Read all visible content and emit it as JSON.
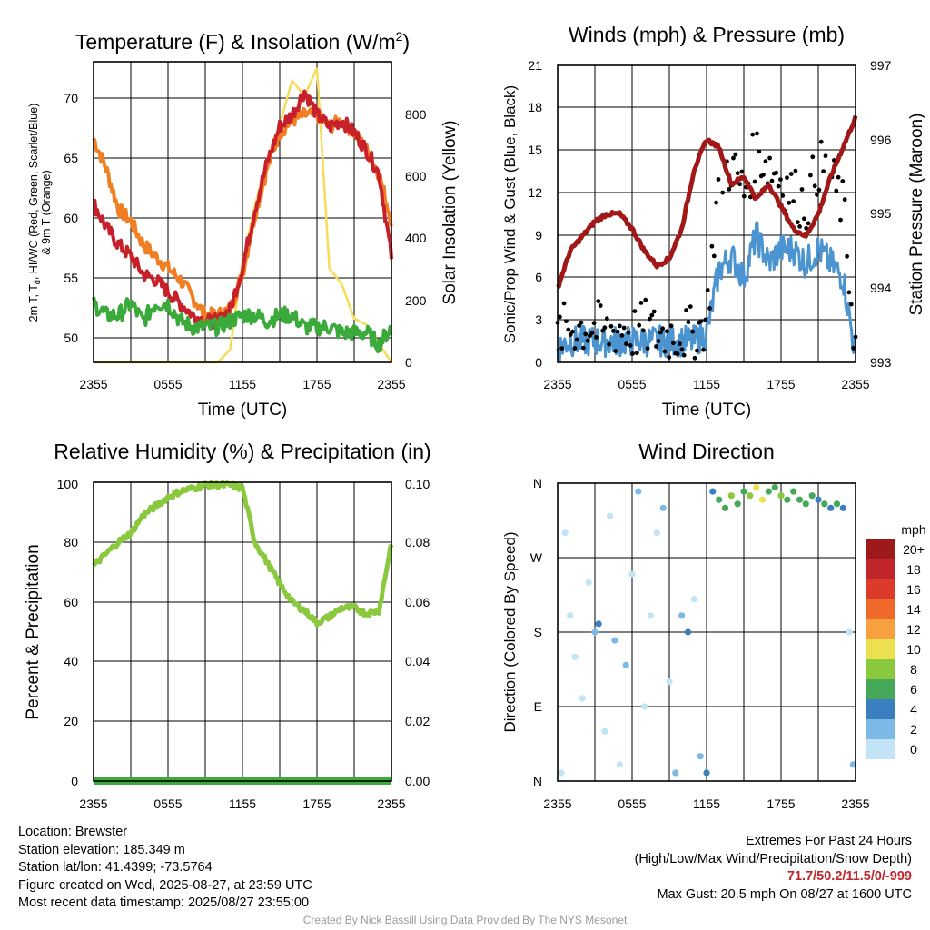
{
  "colors": {
    "temp": "#c8202a",
    "dewpoint_or_feels": "#3aab3a",
    "temp9m": "#f07f24",
    "solar": "#f7dc5a",
    "sonic_wind": "#4b94cf",
    "gust": "#000000",
    "pressure": "#a01818",
    "humidity": "#8ac83e",
    "precip": "#3aab3a"
  },
  "x_ticks": [
    "2355",
    "0555",
    "1155",
    "1755",
    "2355"
  ],
  "panels": {
    "temperature": {
      "title_main": "Temperature (F) & Insolation (W/m",
      "title_sup": "2",
      "title_end": ")",
      "ylabel_line1": "2m T, T",
      "ylabel_sub": "d",
      "ylabel_line1_end": ", HI/WC (Red, Green, Scarlet/Blue)",
      "ylabel_line2": "& 9m T (Orange)",
      "ylabel_right": "Solar Insolation (Yellow)",
      "xlabel": "Time (UTC)",
      "left_ticks": [
        "50",
        "55",
        "60",
        "65",
        "70"
      ],
      "right_ticks": [
        "0",
        "200",
        "400",
        "600",
        "800"
      ]
    },
    "winds": {
      "title": "Winds (mph) & Pressure (mb)",
      "ylabel_left": "Sonic/Prop Wind & Gust (Blue, Black)",
      "ylabel_right": "Station Pressure (Maroon)",
      "xlabel": "Time (UTC)",
      "left_ticks": [
        "0",
        "3",
        "6",
        "9",
        "12",
        "15",
        "18",
        "21"
      ],
      "right_ticks": [
        "993",
        "994",
        "995",
        "996",
        "997"
      ]
    },
    "humidity": {
      "title": "Relative Humidity (%) & Precipitation (in)",
      "ylabel": "Percent & Precipitation",
      "left_ticks": [
        "0",
        "20",
        "40",
        "60",
        "80",
        "100"
      ],
      "right_ticks": [
        "0.00",
        "0.02",
        "0.04",
        "0.06",
        "0.08",
        "0.10"
      ]
    },
    "direction": {
      "title": "Wind Direction",
      "ylabel": "Direction (Colored By Speed)",
      "dir_ticks": [
        "N",
        "E",
        "S",
        "W",
        "N"
      ],
      "legend_title": "mph",
      "legend_labels": [
        "20+",
        "18",
        "16",
        "14",
        "12",
        "10",
        "8",
        "6",
        "4",
        "2",
        "0"
      ],
      "legend_colors": [
        "#9e1a1a",
        "#c0252b",
        "#dc3a2a",
        "#ef6a2a",
        "#f7a040",
        "#ece050",
        "#8ac83e",
        "#45a858",
        "#3a7fc0",
        "#7db9e6",
        "#c3e4f6"
      ]
    }
  },
  "info": {
    "location": "Location: Brewster",
    "elevation": "Station elevation: 185.349 m",
    "latlon": "Station lat/lon: 41.4399; -73.5764",
    "created": "Figure created on Wed, 2025-08-27, at 23:59 UTC",
    "recent": "Most recent data timestamp: 2025/08/27 23:55:00"
  },
  "extremes": {
    "title": "Extremes For Past 24 Hours",
    "subtitle": "(High/Low/Max Wind/Precipitation/Snow Depth)",
    "values": "71.7/50.2/11.5/0/-999",
    "gust": "Max Gust: 20.5 mph On 08/27 at 1600 UTC"
  },
  "credit": "Created By Nick Bassill Using Data Provided By The NYS Mesonet",
  "chart_data": [
    {
      "type": "line",
      "title": "Temperature (F) & Insolation (W/m2)",
      "xlabel": "Time (UTC)",
      "ylabel": "2m T, Td, HI/WC (Red, Green, Scarlet/Blue) & 9m T (Orange)",
      "ylabel_right": "Solar Insolation (Yellow)",
      "ylim": [
        48,
        73.5
      ],
      "ylim_right": [
        0,
        960
      ],
      "x_hours": [
        0,
        1,
        2,
        3,
        4,
        5,
        6,
        7,
        8,
        9,
        10,
        11,
        12,
        13,
        14,
        15,
        16,
        17,
        18,
        19,
        20,
        21,
        22,
        23,
        24
      ],
      "series": [
        {
          "name": "2m T",
          "axis": "left",
          "values": [
            61.5,
            59.5,
            58,
            57,
            55.5,
            55,
            54,
            53,
            52,
            51.5,
            51.5,
            52.5,
            56,
            61,
            65,
            68,
            69,
            71,
            69,
            68,
            68.5,
            67.5,
            66,
            64,
            57
          ]
        },
        {
          "name": "9m T",
          "axis": "left",
          "values": [
            67,
            64.5,
            61,
            60,
            58,
            57,
            56,
            55,
            53.5,
            52,
            52,
            52.5,
            55.5,
            60.5,
            64.5,
            67.5,
            68.5,
            69,
            69,
            68,
            68.5,
            67.5,
            66,
            64,
            60
          ]
        },
        {
          "name": "Td",
          "axis": "left",
          "values": [
            53,
            52,
            52,
            53,
            51.5,
            53,
            53,
            51.5,
            51,
            51,
            51,
            51.5,
            52,
            52,
            51.5,
            52,
            52,
            51,
            51,
            51,
            50.5,
            50.5,
            50.5,
            49.5,
            51
          ]
        },
        {
          "name": "Solar Insolation",
          "axis": "right",
          "values": [
            0,
            0,
            0,
            0,
            0,
            0,
            0,
            0,
            0,
            0,
            0,
            40,
            320,
            500,
            650,
            760,
            900,
            850,
            940,
            300,
            250,
            140,
            120,
            60,
            0
          ]
        }
      ]
    },
    {
      "type": "line",
      "title": "Winds (mph) & Pressure (mb)",
      "xlabel": "Time (UTC)",
      "ylabel": "Sonic/Prop Wind & Gust (Blue, Black)",
      "ylabel_right": "Station Pressure (Maroon)",
      "ylim": [
        0,
        21
      ],
      "ylim_right": [
        993,
        997
      ],
      "x_hours": [
        0,
        1,
        2,
        3,
        4,
        5,
        6,
        7,
        8,
        9,
        10,
        11,
        12,
        13,
        14,
        15,
        16,
        17,
        18,
        19,
        20,
        21,
        22,
        23,
        24
      ],
      "series": [
        {
          "name": "Sonic/Prop Wind",
          "axis": "left",
          "values": [
            1,
            1.5,
            1.5,
            1.5,
            1.5,
            1.5,
            1.5,
            1.5,
            1.5,
            1.5,
            1.5,
            1.5,
            2,
            6.5,
            7.5,
            6,
            9,
            7,
            8,
            8,
            7,
            8,
            7,
            6,
            0.5
          ]
        },
        {
          "name": "Gust",
          "axis": "left",
          "values": [
            2,
            2.5,
            2.5,
            2.5,
            2,
            2.5,
            2,
            2.5,
            2,
            2,
            2,
            2,
            3,
            13,
            14,
            12,
            15,
            14,
            13,
            12,
            11,
            14,
            13,
            11,
            1
          ]
        },
        {
          "name": "Station Pressure",
          "axis": "right",
          "values": [
            994.0,
            994.5,
            994.7,
            994.9,
            995.0,
            995.0,
            994.8,
            994.5,
            994.3,
            994.4,
            994.8,
            995.6,
            996.0,
            995.9,
            995.4,
            995.5,
            995.2,
            995.4,
            995.1,
            994.8,
            994.7,
            995.0,
            995.5,
            995.9,
            996.3
          ]
        }
      ]
    },
    {
      "type": "line",
      "title": "Relative Humidity (%) & Precipitation (in)",
      "ylabel": "Percent & Precipitation",
      "ylim": [
        0,
        100
      ],
      "ylim_right": [
        0,
        0.1
      ],
      "x_hours": [
        0,
        1,
        2,
        3,
        4,
        5,
        6,
        7,
        8,
        9,
        10,
        11,
        12,
        13,
        14,
        15,
        16,
        17,
        18,
        19,
        20,
        21,
        22,
        23,
        24
      ],
      "series": [
        {
          "name": "Relative Humidity",
          "axis": "left",
          "values": [
            72,
            76,
            80,
            83,
            89,
            92,
            95,
            97,
            98,
            99,
            99,
            99,
            98,
            80,
            73,
            66,
            60,
            57,
            53,
            55,
            58,
            58,
            56,
            57,
            80
          ]
        },
        {
          "name": "Precipitation",
          "axis": "right",
          "values": [
            0,
            0,
            0,
            0,
            0,
            0,
            0,
            0,
            0,
            0,
            0,
            0,
            0,
            0,
            0,
            0,
            0,
            0,
            0,
            0,
            0,
            0,
            0,
            0,
            0
          ]
        }
      ]
    },
    {
      "type": "scatter",
      "title": "Wind Direction",
      "ylabel": "Direction (Colored By Speed)",
      "y_categories": [
        "N",
        "E",
        "S",
        "W",
        "N"
      ],
      "ylim": [
        0,
        360
      ],
      "points": [
        {
          "hour": 0.3,
          "dir": 10,
          "speed": 1
        },
        {
          "hour": 0.6,
          "dir": 300,
          "speed": 1
        },
        {
          "hour": 1.0,
          "dir": 200,
          "speed": 1
        },
        {
          "hour": 1.4,
          "dir": 150,
          "speed": 1
        },
        {
          "hour": 2.0,
          "dir": 100,
          "speed": 1
        },
        {
          "hour": 2.5,
          "dir": 240,
          "speed": 1
        },
        {
          "hour": 3.0,
          "dir": 180,
          "speed": 3
        },
        {
          "hour": 3.3,
          "dir": 190,
          "speed": 4
        },
        {
          "hour": 3.8,
          "dir": 60,
          "speed": 1
        },
        {
          "hour": 4.2,
          "dir": 320,
          "speed": 1
        },
        {
          "hour": 4.6,
          "dir": 170,
          "speed": 3
        },
        {
          "hour": 5.0,
          "dir": 20,
          "speed": 1
        },
        {
          "hour": 5.5,
          "dir": 140,
          "speed": 3
        },
        {
          "hour": 6.0,
          "dir": 250,
          "speed": 1
        },
        {
          "hour": 6.5,
          "dir": 350,
          "speed": 2
        },
        {
          "hour": 7.0,
          "dir": 90,
          "speed": 1
        },
        {
          "hour": 7.5,
          "dir": 200,
          "speed": 1
        },
        {
          "hour": 8.0,
          "dir": 300,
          "speed": 1
        },
        {
          "hour": 8.5,
          "dir": 330,
          "speed": 2
        },
        {
          "hour": 9.0,
          "dir": 120,
          "speed": 1
        },
        {
          "hour": 9.5,
          "dir": 10,
          "speed": 3
        },
        {
          "hour": 10.0,
          "dir": 200,
          "speed": 2
        },
        {
          "hour": 10.5,
          "dir": 180,
          "speed": 4
        },
        {
          "hour": 11.0,
          "dir": 220,
          "speed": 1
        },
        {
          "hour": 11.5,
          "dir": 30,
          "speed": 2
        },
        {
          "hour": 12.0,
          "dir": 10,
          "speed": 4
        },
        {
          "hour": 12.5,
          "dir": 350,
          "speed": 4
        },
        {
          "hour": 13.0,
          "dir": 340,
          "speed": 7
        },
        {
          "hour": 13.5,
          "dir": 330,
          "speed": 6
        },
        {
          "hour": 14.0,
          "dir": 345,
          "speed": 8
        },
        {
          "hour": 14.5,
          "dir": 335,
          "speed": 7
        },
        {
          "hour": 15.0,
          "dir": 350,
          "speed": 6
        },
        {
          "hour": 15.5,
          "dir": 345,
          "speed": 9
        },
        {
          "hour": 16.0,
          "dir": 355,
          "speed": 11
        },
        {
          "hour": 16.5,
          "dir": 340,
          "speed": 10
        },
        {
          "hour": 17.0,
          "dir": 350,
          "speed": 7
        },
        {
          "hour": 17.5,
          "dir": 355,
          "speed": 6
        },
        {
          "hour": 18.0,
          "dir": 345,
          "speed": 8
        },
        {
          "hour": 18.5,
          "dir": 340,
          "speed": 6
        },
        {
          "hour": 19.0,
          "dir": 350,
          "speed": 7
        },
        {
          "hour": 19.5,
          "dir": 340,
          "speed": 6
        },
        {
          "hour": 20.0,
          "dir": 335,
          "speed": 7
        },
        {
          "hour": 20.5,
          "dir": 345,
          "speed": 6
        },
        {
          "hour": 21.0,
          "dir": 340,
          "speed": 5
        },
        {
          "hour": 21.5,
          "dir": 335,
          "speed": 6
        },
        {
          "hour": 22.0,
          "dir": 330,
          "speed": 5
        },
        {
          "hour": 22.5,
          "dir": 335,
          "speed": 6
        },
        {
          "hour": 23.0,
          "dir": 330,
          "speed": 5
        },
        {
          "hour": 23.5,
          "dir": 180,
          "speed": 1
        },
        {
          "hour": 23.8,
          "dir": 20,
          "speed": 2
        }
      ]
    }
  ]
}
